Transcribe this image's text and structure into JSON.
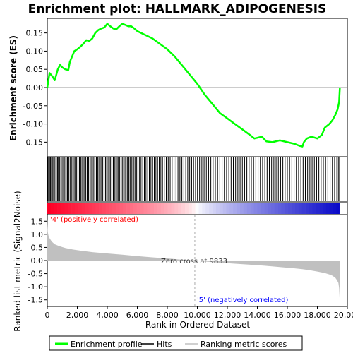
{
  "chart_data": [
    {
      "type": "line",
      "title": "Enrichment plot: HALLMARK_ADIPOGENESIS",
      "ylabel": "Enrichment score (ES)",
      "xlim": [
        0,
        20000
      ],
      "ylim": [
        -0.19,
        0.19
      ],
      "yticks": [
        -0.15,
        -0.1,
        -0.05,
        0.0,
        0.05,
        0.1,
        0.15
      ],
      "ytick_labels": [
        "-0.15",
        "-0.10",
        "-0.05",
        "0.00",
        "0.05",
        "0.10",
        "0.15"
      ],
      "series": [
        {
          "name": "Enrichment profile",
          "color": "#00ff00",
          "x": [
            0,
            150,
            350,
            500,
            700,
            850,
            1000,
            1200,
            1400,
            1500,
            1600,
            1800,
            2000,
            2200,
            2400,
            2600,
            2800,
            3000,
            3200,
            3400,
            3600,
            3800,
            4000,
            4200,
            4400,
            4600,
            4800,
            5000,
            5200,
            5400,
            5600,
            5800,
            6000,
            6500,
            7000,
            7500,
            8000,
            8500,
            9000,
            9500,
            10000,
            10500,
            11000,
            11500,
            12000,
            12500,
            13000,
            13500,
            13800,
            14000,
            14300,
            14600,
            15000,
            15500,
            16000,
            16500,
            16800,
            17000,
            17100,
            17300,
            17600,
            18000,
            18300,
            18500,
            18800,
            19000,
            19200,
            19350,
            19450,
            19500
          ],
          "y": [
            0.0,
            0.04,
            0.03,
            0.02,
            0.05,
            0.062,
            0.055,
            0.05,
            0.048,
            0.07,
            0.08,
            0.1,
            0.105,
            0.112,
            0.12,
            0.13,
            0.128,
            0.135,
            0.15,
            0.158,
            0.162,
            0.165,
            0.175,
            0.168,
            0.162,
            0.16,
            0.168,
            0.175,
            0.172,
            0.168,
            0.168,
            0.162,
            0.155,
            0.145,
            0.135,
            0.12,
            0.105,
            0.085,
            0.06,
            0.035,
            0.01,
            -0.02,
            -0.045,
            -0.07,
            -0.085,
            -0.1,
            -0.115,
            -0.13,
            -0.14,
            -0.138,
            -0.135,
            -0.148,
            -0.15,
            -0.145,
            -0.15,
            -0.155,
            -0.16,
            -0.162,
            -0.15,
            -0.14,
            -0.135,
            -0.14,
            -0.13,
            -0.11,
            -0.1,
            -0.09,
            -0.075,
            -0.06,
            -0.04,
            0.0
          ]
        }
      ],
      "zero_line": 0.0
    },
    {
      "type": "bar",
      "series": [
        {
          "name": "Hits",
          "color": "#000000",
          "x": [
            30,
            90,
            150,
            210,
            280,
            340,
            420,
            510,
            600,
            680,
            740,
            830,
            910,
            990,
            1080,
            1170,
            1260,
            1340,
            1430,
            1520,
            1610,
            1700,
            1790,
            1870,
            1960,
            2050,
            2140,
            2230,
            2310,
            2400,
            2490,
            2570,
            2660,
            2750,
            2840,
            2920,
            3010,
            3100,
            3180,
            3270,
            3360,
            3440,
            3530,
            3620,
            3700,
            3790,
            3880,
            3960,
            4050,
            4140,
            4220,
            4310,
            4400,
            4480,
            4570,
            4660,
            4740,
            4830,
            4920,
            5000,
            5090,
            5180,
            5260,
            5350,
            5440,
            5520,
            5610,
            5700,
            5780,
            5870,
            5960,
            6050,
            6150,
            6250,
            6360,
            6470,
            6580,
            6690,
            6800,
            6910,
            7020,
            7130,
            7240,
            7350,
            7460,
            7570,
            7680,
            7800,
            7930,
            8060,
            8190,
            8320,
            8450,
            8580,
            8710,
            8840,
            8970,
            9100,
            9230,
            9360,
            9490,
            9620,
            9750,
            9880,
            10010,
            10150,
            10300,
            10450,
            10600,
            10750,
            10900,
            11050,
            11200,
            11350,
            11500,
            11650,
            11800,
            11950,
            12100,
            12250,
            12400,
            12550,
            12700,
            12850,
            13000,
            13150,
            13300,
            13450,
            13600,
            13750,
            13900,
            14050,
            14200,
            14350,
            14500,
            14650,
            14800,
            14950,
            15100,
            15250,
            15400,
            15550,
            15700,
            15850,
            16000,
            16150,
            16300,
            16450,
            16600,
            16750,
            16900,
            17050,
            17200,
            17350,
            17500,
            17650,
            17800,
            17950,
            18100,
            18250,
            18400,
            18550,
            18700,
            18850,
            19000,
            19150,
            19300,
            19400,
            19480
          ]
        }
      ]
    },
    {
      "type": "area",
      "ylabel": "Ranked list metric (Signal2Noise)",
      "xlabel": "Rank in Ordered Dataset",
      "xlim": [
        0,
        20000
      ],
      "ylim": [
        -1.75,
        1.75
      ],
      "xticks": [
        0,
        2000,
        4000,
        6000,
        8000,
        10000,
        12000,
        14000,
        16000,
        18000,
        20000
      ],
      "xtick_labels": [
        "0",
        "2,000",
        "4,000",
        "6,000",
        "8,000",
        "10,000",
        "12,000",
        "14,000",
        "16,000",
        "18,000",
        "20,000"
      ],
      "yticks": [
        -1.5,
        -1.0,
        -0.5,
        0.0,
        0.5,
        1.0,
        1.5
      ],
      "ytick_labels": [
        "-1.5",
        "-1.0",
        "-0.5",
        "0.0",
        "0.5",
        "1.0",
        "1.5"
      ],
      "series": [
        {
          "name": "Ranking metric scores",
          "color": "#c0c0c0",
          "x": [
            0,
            30,
            80,
            150,
            300,
            500,
            800,
            1200,
            1700,
            2300,
            3000,
            4000,
            5000,
            6000,
            7000,
            8000,
            9000,
            9833,
            10500,
            11500,
            12500,
            13500,
            14500,
            15500,
            16500,
            17000,
            17500,
            18000,
            18500,
            18800,
            19000,
            19200,
            19300,
            19400,
            19450,
            19500
          ],
          "y": [
            1.6,
            1.1,
            0.95,
            0.85,
            0.72,
            0.62,
            0.55,
            0.48,
            0.42,
            0.37,
            0.32,
            0.27,
            0.22,
            0.17,
            0.12,
            0.08,
            0.03,
            0.0,
            -0.04,
            -0.08,
            -0.12,
            -0.16,
            -0.2,
            -0.25,
            -0.3,
            -0.33,
            -0.37,
            -0.42,
            -0.48,
            -0.53,
            -0.58,
            -0.66,
            -0.74,
            -0.85,
            -1.05,
            -1.62
          ]
        }
      ],
      "annotations": {
        "zero_cross": "Zero cross at 9833",
        "positive": "'4' (positively correlated)",
        "negative": "'5' (negatively correlated)"
      },
      "annotation_colors": {
        "positive": "#ff0000",
        "negative": "#0000ff"
      }
    }
  ],
  "legend": [
    {
      "label": "Enrichment profile",
      "color": "#00ff00"
    },
    {
      "label": "Hits",
      "color": "#000000"
    },
    {
      "label": "Ranking metric scores",
      "color": "#c0c0c0"
    }
  ]
}
